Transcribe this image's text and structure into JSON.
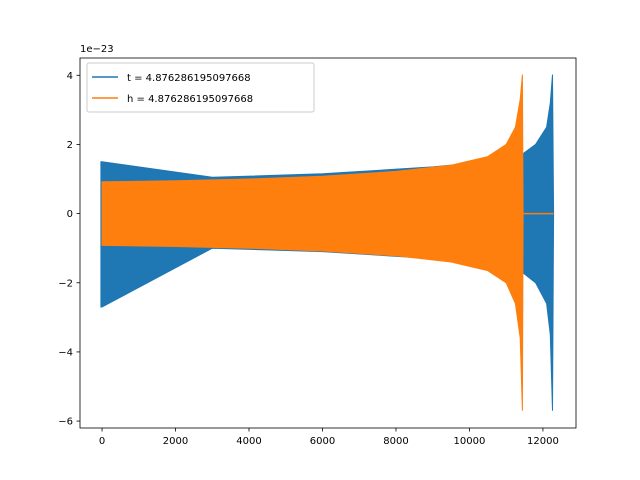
{
  "chart_data": {
    "type": "line",
    "title": "",
    "xlabel": "",
    "ylabel": "",
    "offset_label": "1e−23",
    "xlim": [
      -600,
      12900
    ],
    "ylim": [
      -6.2,
      4.5
    ],
    "xticks": [
      0,
      2000,
      4000,
      6000,
      8000,
      10000,
      12000
    ],
    "yticks": [
      -6,
      -4,
      -2,
      0,
      2,
      4
    ],
    "xtick_labels": [
      "0",
      "2000",
      "4000",
      "6000",
      "8000",
      "10000",
      "12000"
    ],
    "ytick_labels": [
      "−6",
      "−4",
      "−2",
      "0",
      "2",
      "4"
    ],
    "grid": false,
    "legend_position": "upper-left",
    "series": [
      {
        "name": "t = 4.876286195097668",
        "color": "#1f77b4",
        "end_x": 12290,
        "envelope": [
          {
            "x": -30,
            "upper": 1.5,
            "lower": -2.7
          },
          {
            "x": 0,
            "upper": 1.5,
            "lower": -2.7
          },
          {
            "x": 3000,
            "upper": 1.05,
            "lower": -1.0
          },
          {
            "x": 6000,
            "upper": 1.15,
            "lower": -1.1
          },
          {
            "x": 9000,
            "upper": 1.35,
            "lower": -1.3
          },
          {
            "x": 11000,
            "upper": 1.55,
            "lower": -1.5
          },
          {
            "x": 11440,
            "upper": 1.72,
            "lower": -1.7
          },
          {
            "x": 11800,
            "upper": 2.0,
            "lower": -2.0
          },
          {
            "x": 12100,
            "upper": 2.5,
            "lower": -2.6
          },
          {
            "x": 12200,
            "upper": 3.2,
            "lower": -3.5
          },
          {
            "x": 12260,
            "upper": 4.02,
            "lower": -5.7
          },
          {
            "x": 12290,
            "upper": 0.0,
            "lower": 0.0
          }
        ]
      },
      {
        "name": "h = 4.876286195097668",
        "color": "#ff7f0e",
        "end_x": 12290,
        "zero_tail_from_x": 11460,
        "envelope": [
          {
            "x": 0,
            "upper": 0.92,
            "lower": -0.92
          },
          {
            "x": 2000,
            "upper": 0.95,
            "lower": -0.95
          },
          {
            "x": 4000,
            "upper": 1.0,
            "lower": -1.0
          },
          {
            "x": 6000,
            "upper": 1.08,
            "lower": -1.08
          },
          {
            "x": 8000,
            "upper": 1.22,
            "lower": -1.22
          },
          {
            "x": 9500,
            "upper": 1.4,
            "lower": -1.4
          },
          {
            "x": 10500,
            "upper": 1.65,
            "lower": -1.65
          },
          {
            "x": 11000,
            "upper": 2.0,
            "lower": -2.0
          },
          {
            "x": 11250,
            "upper": 2.5,
            "lower": -2.6
          },
          {
            "x": 11380,
            "upper": 3.3,
            "lower": -3.6
          },
          {
            "x": 11440,
            "upper": 4.02,
            "lower": -5.7
          },
          {
            "x": 11460,
            "upper": 0.0,
            "lower": 0.0
          }
        ]
      }
    ]
  }
}
